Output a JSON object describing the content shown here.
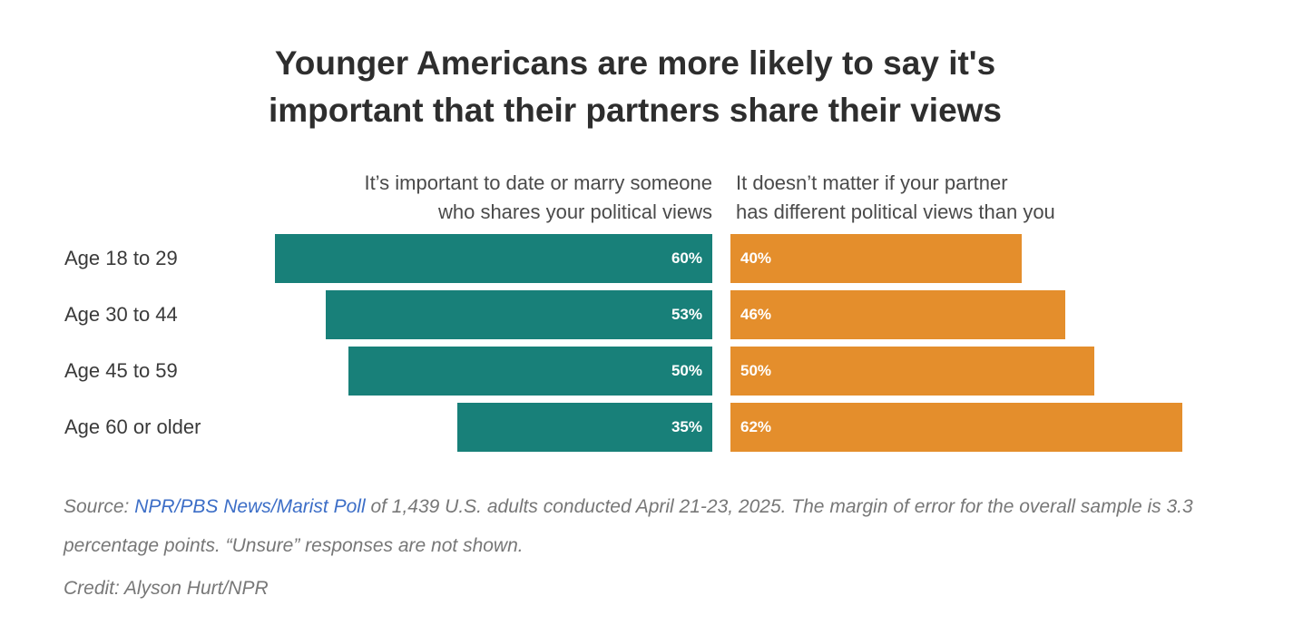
{
  "chart_data": {
    "type": "bar",
    "orientation": "horizontal",
    "layout": "diverging",
    "title": [
      "Younger Americans are more likely to say it's",
      "important that their partners share their views"
    ],
    "categories": [
      "Age 18 to 29",
      "Age 30 to 44",
      "Age 45 to 59",
      "Age 60 or older"
    ],
    "series": [
      {
        "name": "It’s important to date or marry someone who shares your political views",
        "header_lines": [
          "It’s important to date or marry someone",
          "who shares your political views"
        ],
        "color": "#188079",
        "values": [
          60,
          53,
          50,
          35
        ],
        "labels": [
          "60%",
          "53%",
          "50%",
          "35%"
        ]
      },
      {
        "name": "It doesn’t matter if your partner has different political views than you",
        "header_lines": [
          "It doesn’t matter if your partner",
          "has different political views than you"
        ],
        "color": "#e48e2c",
        "values": [
          40,
          46,
          50,
          62
        ],
        "labels": [
          "40%",
          "46%",
          "50%",
          "62%"
        ]
      }
    ],
    "unit": "%"
  },
  "footer": {
    "source_prefix": "Source: ",
    "source_link": "NPR/PBS News/Marist Poll",
    "source_text": " of 1,439 U.S. adults conducted April 21-23, 2025. The margin of error for the overall sample is 3.3 percentage points. “Unsure” responses are not shown.",
    "credit": "Credit: Alyson Hurt/NPR"
  },
  "colors": {
    "agree": "#188079",
    "disagree": "#e48e2c",
    "link": "#3c6ec7"
  }
}
